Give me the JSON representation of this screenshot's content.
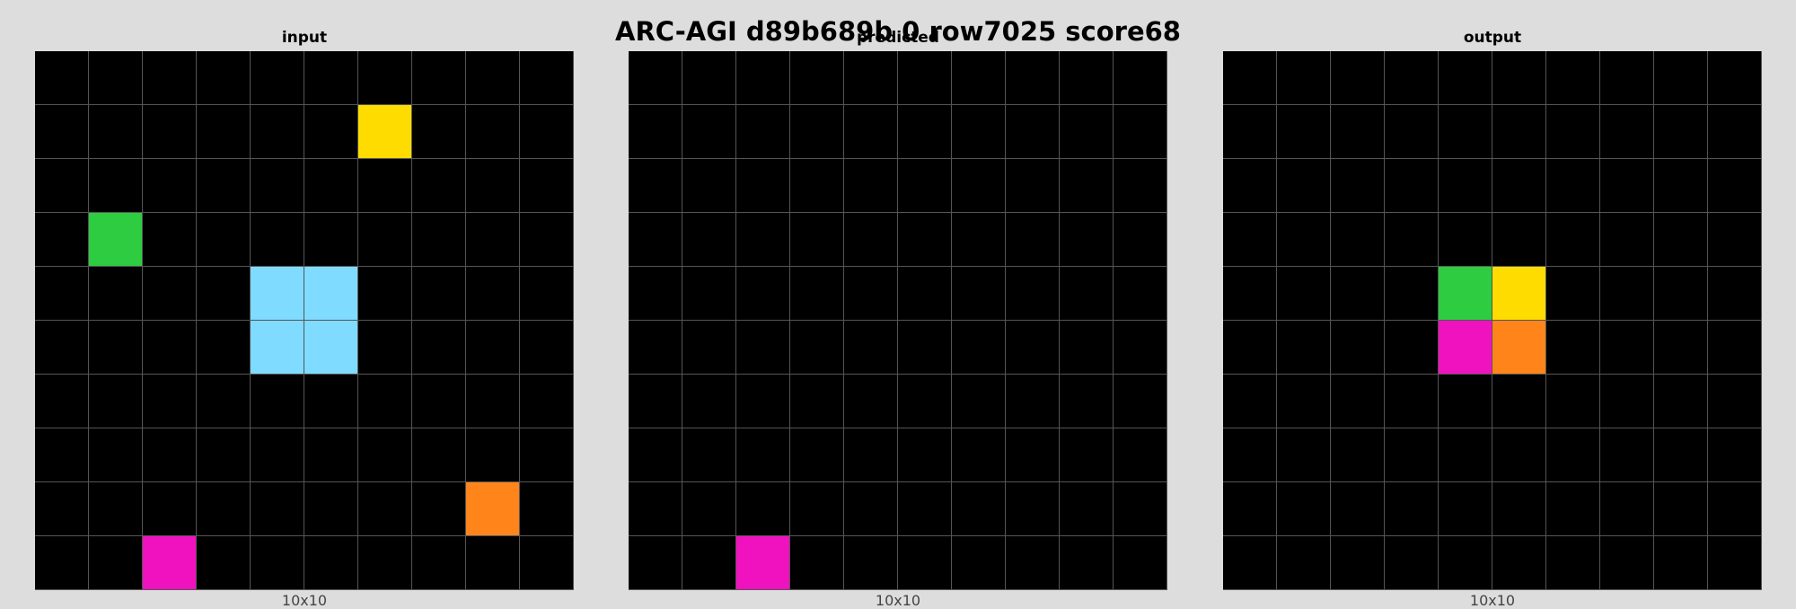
{
  "title": "ARC-AGI d89b689b 0 row7025 score68",
  "palette": {
    "0": "#000000",
    "1": "#0074d9",
    "2": "#ff4136",
    "3": "#2ecc40",
    "4": "#ffdc00",
    "5": "#aaaaaa",
    "6": "#f012be",
    "7": "#ff851b",
    "8": "#7fdbff",
    "9": "#870c25"
  },
  "panels": [
    {
      "label": "input",
      "size": "10x10",
      "grid": [
        [
          0,
          0,
          0,
          0,
          0,
          0,
          0,
          0,
          0,
          0
        ],
        [
          0,
          0,
          0,
          0,
          0,
          0,
          4,
          0,
          0,
          0
        ],
        [
          0,
          0,
          0,
          0,
          0,
          0,
          0,
          0,
          0,
          0
        ],
        [
          0,
          3,
          0,
          0,
          0,
          0,
          0,
          0,
          0,
          0
        ],
        [
          0,
          0,
          0,
          0,
          8,
          8,
          0,
          0,
          0,
          0
        ],
        [
          0,
          0,
          0,
          0,
          8,
          8,
          0,
          0,
          0,
          0
        ],
        [
          0,
          0,
          0,
          0,
          0,
          0,
          0,
          0,
          0,
          0
        ],
        [
          0,
          0,
          0,
          0,
          0,
          0,
          0,
          0,
          0,
          0
        ],
        [
          0,
          0,
          0,
          0,
          0,
          0,
          0,
          0,
          7,
          0
        ],
        [
          0,
          0,
          6,
          0,
          0,
          0,
          0,
          0,
          0,
          0
        ]
      ]
    },
    {
      "label": "predicted",
      "size": "10x10",
      "grid": [
        [
          0,
          0,
          0,
          0,
          0,
          0,
          0,
          0,
          0,
          0
        ],
        [
          0,
          0,
          0,
          0,
          0,
          0,
          0,
          0,
          0,
          0
        ],
        [
          0,
          0,
          0,
          0,
          0,
          0,
          0,
          0,
          0,
          0
        ],
        [
          0,
          0,
          0,
          0,
          0,
          0,
          0,
          0,
          0,
          0
        ],
        [
          0,
          0,
          0,
          0,
          0,
          0,
          0,
          0,
          0,
          0
        ],
        [
          0,
          0,
          0,
          0,
          0,
          0,
          0,
          0,
          0,
          0
        ],
        [
          0,
          0,
          0,
          0,
          0,
          0,
          0,
          0,
          0,
          0
        ],
        [
          0,
          0,
          0,
          0,
          0,
          0,
          0,
          0,
          0,
          0
        ],
        [
          0,
          0,
          0,
          0,
          0,
          0,
          0,
          0,
          0,
          0
        ],
        [
          0,
          0,
          6,
          0,
          0,
          0,
          0,
          0,
          0,
          0
        ]
      ]
    },
    {
      "label": "output",
      "size": "10x10",
      "grid": [
        [
          0,
          0,
          0,
          0,
          0,
          0,
          0,
          0,
          0,
          0
        ],
        [
          0,
          0,
          0,
          0,
          0,
          0,
          0,
          0,
          0,
          0
        ],
        [
          0,
          0,
          0,
          0,
          0,
          0,
          0,
          0,
          0,
          0
        ],
        [
          0,
          0,
          0,
          0,
          0,
          0,
          0,
          0,
          0,
          0
        ],
        [
          0,
          0,
          0,
          0,
          3,
          4,
          0,
          0,
          0,
          0
        ],
        [
          0,
          0,
          0,
          0,
          6,
          7,
          0,
          0,
          0,
          0
        ],
        [
          0,
          0,
          0,
          0,
          0,
          0,
          0,
          0,
          0,
          0
        ],
        [
          0,
          0,
          0,
          0,
          0,
          0,
          0,
          0,
          0,
          0
        ],
        [
          0,
          0,
          0,
          0,
          0,
          0,
          0,
          0,
          0,
          0
        ],
        [
          0,
          0,
          0,
          0,
          0,
          0,
          0,
          0,
          0,
          0
        ]
      ]
    }
  ]
}
